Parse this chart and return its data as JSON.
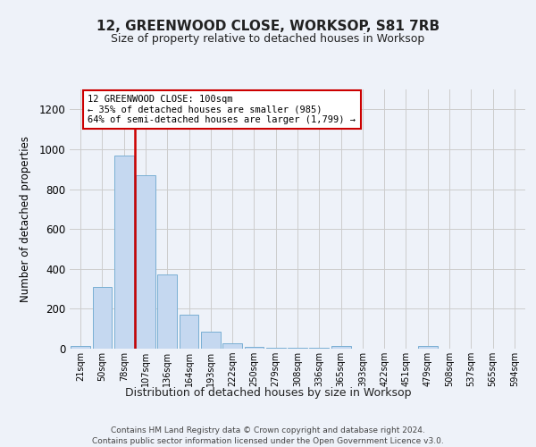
{
  "title": "12, GREENWOOD CLOSE, WORKSOP, S81 7RB",
  "subtitle": "Size of property relative to detached houses in Worksop",
  "xlabel": "Distribution of detached houses by size in Worksop",
  "ylabel": "Number of detached properties",
  "footer_line1": "Contains HM Land Registry data © Crown copyright and database right 2024.",
  "footer_line2": "Contains public sector information licensed under the Open Government Licence v3.0.",
  "annotation_title": "12 GREENWOOD CLOSE: 100sqm",
  "annotation_line2": "← 35% of detached houses are smaller (985)",
  "annotation_line3": "64% of semi-detached houses are larger (1,799) →",
  "bar_labels": [
    "21sqm",
    "50sqm",
    "78sqm",
    "107sqm",
    "136sqm",
    "164sqm",
    "193sqm",
    "222sqm",
    "250sqm",
    "279sqm",
    "308sqm",
    "336sqm",
    "365sqm",
    "393sqm",
    "422sqm",
    "451sqm",
    "479sqm",
    "508sqm",
    "537sqm",
    "565sqm",
    "594sqm"
  ],
  "bar_values": [
    15,
    310,
    970,
    870,
    370,
    170,
    85,
    25,
    10,
    5,
    5,
    5,
    12,
    0,
    0,
    0,
    12,
    0,
    0,
    0,
    0
  ],
  "bar_color": "#c5d8f0",
  "bar_edge_color": "#7aafd4",
  "ylim": [
    0,
    1300
  ],
  "yticks": [
    0,
    200,
    400,
    600,
    800,
    1000,
    1200
  ],
  "red_line_color": "#cc0000",
  "annotation_box_color": "#cc0000",
  "grid_color": "#cccccc",
  "bg_color": "#eef2f9"
}
